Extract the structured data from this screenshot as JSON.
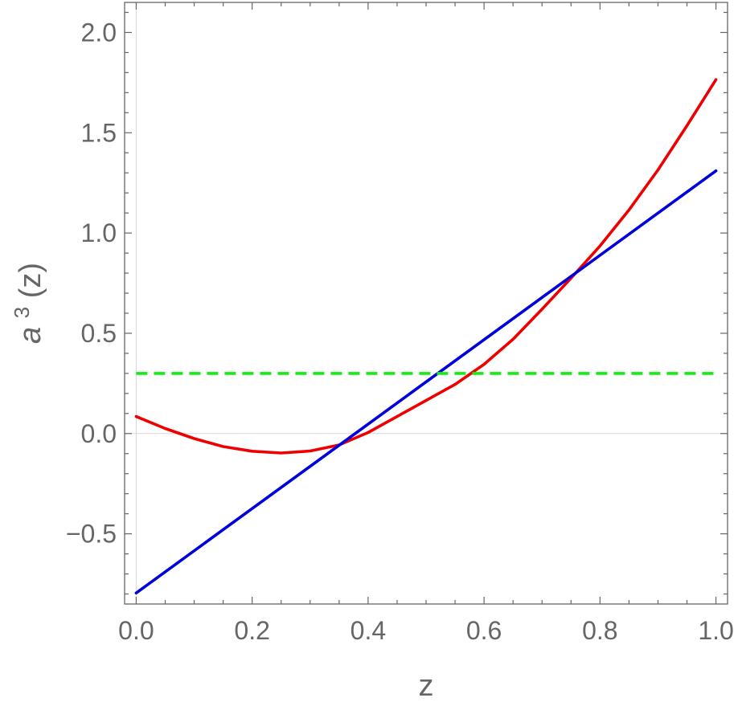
{
  "chart_data": {
    "type": "line",
    "title": "",
    "xlabel": "z",
    "ylabel": {
      "base": "a",
      "superscript": "3",
      "suffix": "(z)"
    },
    "xlim": [
      -0.02,
      1.02
    ],
    "ylim": [
      -0.85,
      2.15
    ],
    "x_ticks": [
      0.0,
      0.2,
      0.4,
      0.6,
      0.8,
      1.0
    ],
    "x_tick_labels": [
      "0.0",
      "0.2",
      "0.4",
      "0.6",
      "0.8",
      "1.0"
    ],
    "y_ticks": [
      -0.5,
      0.0,
      0.5,
      1.0,
      1.5,
      2.0
    ],
    "y_tick_labels": [
      "−0.5",
      "0.0",
      "0.5",
      "1.0",
      "1.5",
      "2.0"
    ],
    "grid": false,
    "legend": "none",
    "series": [
      {
        "color": "#ee0000",
        "style": "solid",
        "x": [
          0.0,
          0.05,
          0.1,
          0.15,
          0.2,
          0.25,
          0.3,
          0.35,
          0.4,
          0.45,
          0.5,
          0.55,
          0.6,
          0.65,
          0.7,
          0.75,
          0.8,
          0.85,
          0.9,
          0.95,
          1.0
        ],
        "y": [
          0.085,
          0.025,
          -0.025,
          -0.065,
          -0.088,
          -0.097,
          -0.087,
          -0.057,
          0.005,
          0.085,
          0.165,
          0.245,
          0.345,
          0.47,
          0.62,
          0.775,
          0.935,
          1.115,
          1.315,
          1.535,
          1.765
        ]
      },
      {
        "color": "#0000dd",
        "style": "solid",
        "x": [
          0.0,
          1.0
        ],
        "y": [
          -0.795,
          1.31
        ]
      },
      {
        "color": "#11ee11",
        "style": "dashed",
        "x": [
          0.0,
          1.0
        ],
        "y": [
          0.3,
          0.3
        ]
      }
    ]
  }
}
